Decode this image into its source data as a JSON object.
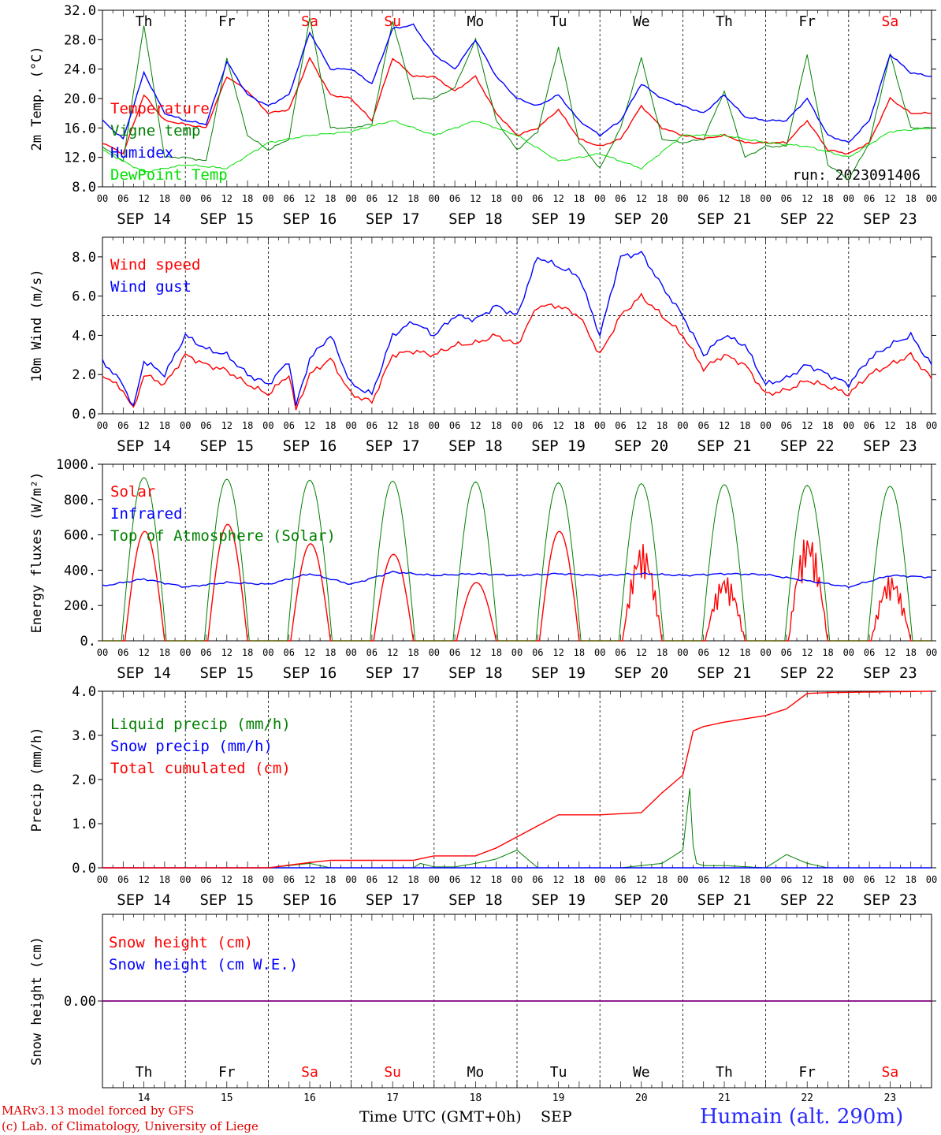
{
  "days": [
    "14",
    "15",
    "16",
    "17",
    "18",
    "19",
    "20",
    "21",
    "22",
    "23"
  ],
  "weekdays": [
    "Th",
    "Fr",
    "Sa",
    "Su",
    "Mo",
    "Tu",
    "We",
    "Th",
    "Fr",
    "Sa"
  ],
  "weekend_flags": [
    false,
    false,
    true,
    true,
    false,
    false,
    false,
    false,
    false,
    true
  ],
  "month": "SEP",
  "hour_ticks": [
    "00",
    "06",
    "12",
    "18"
  ],
  "hour_end": "00",
  "run_label": "run: 2023091406",
  "footer": {
    "line1": "MARv3.13 model forced by GFS",
    "line2": "(c) Lab. of Climatology, University of Liege",
    "xlabel": "Time UTC (GMT+0h)",
    "month_label": "SEP",
    "station": "Humain (alt. 290m)"
  },
  "colors": {
    "red": "#ff0000",
    "green": "#008000",
    "blue": "#0000ff",
    "lightgreen": "#00e000",
    "purple": "#800080"
  },
  "chart_data": [
    {
      "type": "line",
      "ylabel": "2m Temp. (°C)",
      "ylim": [
        8,
        32
      ],
      "yticks": [
        "8.0",
        "12.0",
        "16.0",
        "20.0",
        "24.0",
        "28.0",
        "32.0"
      ],
      "x_unit": "hours since SEP 14 00 UTC",
      "series": [
        {
          "name": "Temperature",
          "color": "red",
          "x": [
            0,
            6,
            12,
            18,
            24,
            30,
            36,
            42,
            48,
            54,
            60,
            66,
            72,
            78,
            84,
            90,
            96,
            102,
            108,
            114,
            120,
            126,
            132,
            138,
            144,
            150,
            156,
            162,
            168,
            174,
            180,
            186,
            192,
            198,
            204,
            210,
            216,
            222,
            228,
            234,
            240
          ],
          "values": [
            14,
            12.5,
            20.5,
            17,
            16.5,
            16,
            23,
            21,
            18,
            18.5,
            25.5,
            20.5,
            20,
            17,
            25.5,
            23,
            23,
            21,
            23,
            18,
            15,
            16,
            18.5,
            14.5,
            13.5,
            14.5,
            19,
            16,
            15,
            14.5,
            15,
            14,
            14,
            14,
            17,
            13,
            12.5,
            14,
            20,
            18,
            18
          ]
        },
        {
          "name": "Vigne temp",
          "color": "green",
          "x": [
            0,
            6,
            12,
            18,
            24,
            30,
            36,
            42,
            48,
            54,
            60,
            66,
            72,
            78,
            84,
            90,
            96,
            102,
            108,
            114,
            120,
            126,
            132,
            138,
            144,
            150,
            156,
            162,
            168,
            174,
            180,
            186,
            192,
            198,
            204,
            210,
            216,
            222,
            228,
            234,
            240
          ],
          "values": [
            13.5,
            11.5,
            30,
            12,
            12,
            11.5,
            25.5,
            15,
            13,
            14.5,
            31,
            16,
            16,
            16.5,
            30.5,
            20,
            20,
            21.5,
            28,
            17,
            13,
            15.5,
            27,
            14,
            10.5,
            16,
            25.5,
            14.5,
            14,
            14.5,
            21,
            12,
            13.5,
            13.5,
            26,
            11,
            9,
            14,
            26,
            16,
            16
          ]
        },
        {
          "name": "Humidex",
          "color": "blue",
          "x": [
            0,
            6,
            12,
            18,
            24,
            30,
            36,
            42,
            48,
            54,
            60,
            66,
            72,
            78,
            84,
            90,
            96,
            102,
            108,
            114,
            120,
            126,
            132,
            138,
            144,
            150,
            156,
            162,
            168,
            174,
            180,
            186,
            192,
            198,
            204,
            210,
            216,
            222,
            228,
            234,
            240
          ],
          "values": [
            17,
            14.5,
            23.5,
            18,
            17,
            16.5,
            25,
            20.5,
            19,
            20.5,
            29,
            24,
            24,
            22,
            29.5,
            30,
            26,
            24,
            28,
            23,
            20,
            19,
            20.5,
            17,
            15,
            17,
            22,
            20,
            19,
            18,
            20.5,
            17.5,
            17,
            17,
            20,
            15,
            14,
            17,
            26,
            23.5,
            23
          ]
        },
        {
          "name": "DewPoint Temp",
          "color": "lightgreen",
          "x": [
            0,
            12,
            24,
            36,
            48,
            60,
            72,
            84,
            96,
            108,
            120,
            132,
            144,
            156,
            168,
            180,
            192,
            204,
            216,
            228,
            240
          ],
          "values": [
            13,
            10,
            11,
            10.5,
            14,
            15,
            15.5,
            17,
            15,
            17,
            15,
            11.5,
            12.5,
            10.5,
            15,
            15,
            14,
            13.5,
            12,
            15.5,
            16
          ]
        }
      ],
      "legend": [
        "Temperature",
        "Vigne temp",
        "Humidex",
        "DewPoint Temp"
      ],
      "legend_colors": [
        "red",
        "green",
        "blue",
        "lightgreen"
      ],
      "legend_placement": "left",
      "dashed_lines": []
    },
    {
      "type": "line",
      "ylabel": "10m Wind (m/s)",
      "ylim": [
        0,
        9
      ],
      "yticks": [
        "0.0",
        "2.0",
        "4.0",
        "6.0",
        "8.0"
      ],
      "x_unit": "hours since SEP 14 00 UTC",
      "series": [
        {
          "name": "Wind speed",
          "color": "red",
          "x": [
            0,
            6,
            9,
            12,
            18,
            24,
            30,
            36,
            42,
            48,
            54,
            56,
            60,
            66,
            72,
            78,
            84,
            90,
            96,
            102,
            108,
            114,
            120,
            126,
            132,
            138,
            144,
            150,
            156,
            162,
            168,
            174,
            180,
            186,
            192,
            198,
            204,
            210,
            216,
            222,
            228,
            234,
            240
          ],
          "values": [
            2,
            1.2,
            0.2,
            2,
            1.5,
            3,
            2.5,
            2.2,
            1.5,
            1,
            2,
            0.2,
            2,
            2.8,
            1,
            0.6,
            3,
            3.2,
            3,
            3.5,
            3.6,
            4,
            3.5,
            5.5,
            5.5,
            5,
            3,
            5,
            6,
            5,
            4,
            2.3,
            3,
            2.5,
            1,
            1.2,
            1.7,
            1.4,
            1,
            2,
            2.5,
            3,
            1.8
          ]
        },
        {
          "name": "Wind gust",
          "color": "blue",
          "x": [
            0,
            6,
            9,
            12,
            18,
            24,
            30,
            36,
            42,
            48,
            54,
            56,
            60,
            66,
            72,
            78,
            84,
            90,
            96,
            102,
            108,
            114,
            120,
            126,
            132,
            138,
            144,
            150,
            156,
            162,
            168,
            174,
            180,
            186,
            192,
            198,
            204,
            210,
            216,
            222,
            228,
            234,
            240
          ],
          "values": [
            2.7,
            1.5,
            0.3,
            2.7,
            2,
            4,
            3.3,
            3,
            2,
            1.5,
            2.7,
            0.4,
            2.8,
            4,
            1.5,
            1,
            4,
            4.7,
            4,
            5,
            4.8,
            5.5,
            5,
            8,
            7.5,
            7,
            4,
            8,
            8.2,
            6.5,
            5,
            3,
            4,
            3.5,
            1.5,
            1.8,
            2.5,
            2,
            1.5,
            2.8,
            3.5,
            4,
            2.5
          ]
        }
      ],
      "legend": [
        "Wind speed",
        "Wind gust"
      ],
      "legend_colors": [
        "red",
        "blue"
      ],
      "legend_placement": "left",
      "dashed_lines": [
        5
      ]
    },
    {
      "type": "line",
      "ylabel": "Energy fluxes (W/m²)",
      "ylim": [
        0,
        1000
      ],
      "yticks": [
        "0.",
        "200.",
        "400.",
        "600.",
        "800.",
        "1000."
      ],
      "x_unit": "hours since SEP 14 00 UTC",
      "series": [
        {
          "name": "Solar",
          "color": "red",
          "peaks": [
            620,
            660,
            550,
            490,
            330,
            620,
            550,
            370,
            610,
            370
          ]
        },
        {
          "name": "Infrared",
          "color": "blue",
          "x": [
            0,
            12,
            24,
            36,
            48,
            60,
            72,
            84,
            96,
            108,
            120,
            132,
            144,
            156,
            168,
            180,
            192,
            204,
            216,
            228,
            240
          ],
          "values": [
            310,
            350,
            305,
            330,
            320,
            380,
            320,
            390,
            370,
            380,
            370,
            380,
            370,
            380,
            370,
            380,
            375,
            340,
            305,
            370,
            360
          ]
        },
        {
          "name": "Top of Atmosphere (Solar)",
          "color": "green",
          "peaks": [
            925,
            915,
            910,
            905,
            900,
            895,
            890,
            885,
            880,
            875
          ]
        }
      ],
      "legend": [
        "Solar",
        "Infrared",
        "Top of Atmosphere (Solar)"
      ],
      "legend_colors": [
        "red",
        "blue",
        "green"
      ],
      "legend_placement": "left",
      "dashed_lines": []
    },
    {
      "type": "line",
      "ylabel": "Precip (mm/h)",
      "ylim": [
        0,
        4
      ],
      "yticks": [
        "0.0",
        "1.0",
        "2.0",
        "3.0",
        "4.0"
      ],
      "x_unit": "hours since SEP 14 00 UTC",
      "series": [
        {
          "name": "Liquid precip (mm/h)",
          "color": "green",
          "x": [
            0,
            48,
            54,
            60,
            66,
            72,
            90,
            92,
            96,
            102,
            108,
            114,
            120,
            126,
            132,
            150,
            162,
            168,
            170,
            171,
            172,
            174,
            180,
            192,
            198,
            204,
            210,
            240
          ],
          "values": [
            0,
            0,
            0.05,
            0.1,
            0,
            0,
            0,
            0.1,
            0.02,
            0.02,
            0.1,
            0.2,
            0.4,
            0,
            0,
            0,
            0.1,
            0.4,
            1.8,
            0.5,
            0.1,
            0.05,
            0.05,
            0,
            0.3,
            0.1,
            0,
            0
          ]
        },
        {
          "name": "Snow precip (mm/h)",
          "color": "blue",
          "x": [
            0,
            240
          ],
          "values": [
            0,
            0
          ]
        },
        {
          "name": "Total cumulated (cm)",
          "color": "red",
          "x": [
            0,
            48,
            60,
            66,
            72,
            90,
            96,
            108,
            114,
            120,
            132,
            144,
            156,
            162,
            168,
            171,
            174,
            180,
            192,
            198,
            204,
            210,
            240
          ],
          "values": [
            0,
            0,
            0.12,
            0.17,
            0.17,
            0.17,
            0.27,
            0.27,
            0.45,
            0.7,
            1.2,
            1.2,
            1.25,
            1.7,
            2.1,
            3.1,
            3.2,
            3.3,
            3.45,
            3.6,
            3.95,
            3.97,
            4
          ]
        }
      ],
      "legend": [
        "Liquid precip (mm/h)",
        "Snow precip (mm/h)",
        "Total cumulated (cm)"
      ],
      "legend_colors": [
        "green",
        "blue",
        "red"
      ],
      "legend_placement": "left",
      "dashed_lines": []
    },
    {
      "type": "line",
      "ylabel": "Snow height (cm)",
      "ylim": [
        -1,
        1
      ],
      "yticks": [
        "0.00"
      ],
      "x_unit": "hours since SEP 14 00 UTC",
      "series": [
        {
          "name": "Snow height (cm)",
          "color": "red",
          "x": [
            0,
            240
          ],
          "values": [
            0,
            0
          ]
        },
        {
          "name": "Snow height (cm W.E.)",
          "color": "blue",
          "x": [
            0,
            240
          ],
          "values": [
            0,
            0
          ]
        }
      ],
      "legend": [
        "Snow height (cm)",
        "Snow height (cm W.E.)"
      ],
      "legend_colors": [
        "red",
        "blue"
      ],
      "legend_placement": "left",
      "dashed_lines": []
    }
  ]
}
